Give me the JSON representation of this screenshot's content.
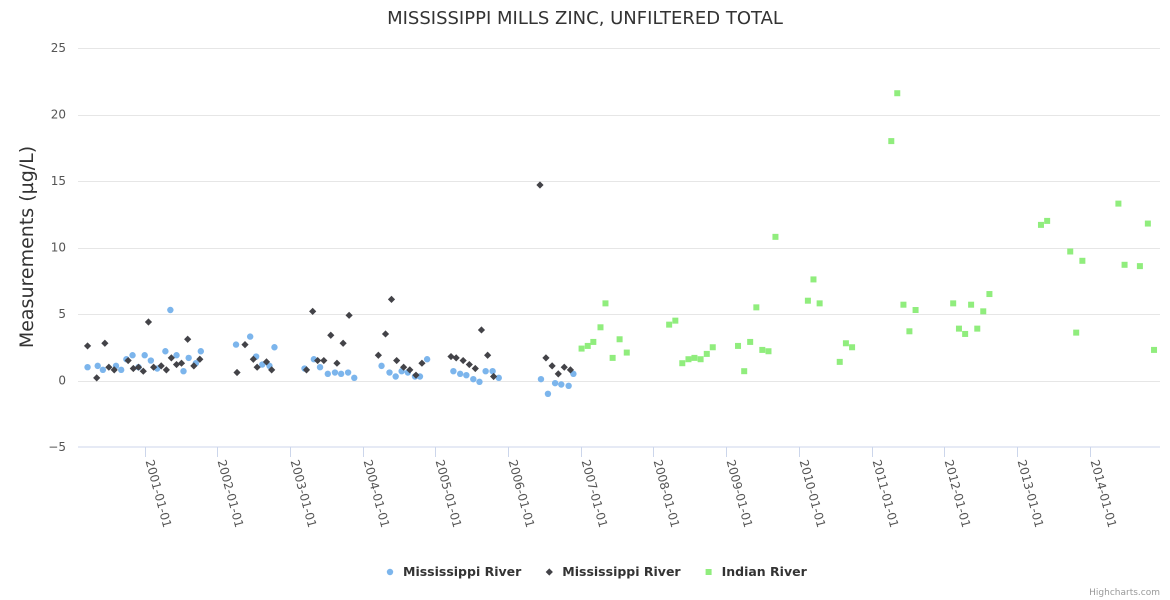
{
  "chart_data": {
    "type": "scatter",
    "title": "MISSISSIPPI MILLS ZINC, UNFILTERED TOTAL",
    "xlabel": "",
    "ylabel": "Measurements (µg/L)",
    "xlim": [
      "2000-02-01",
      "2014-12-20"
    ],
    "ylim": [
      -5,
      25
    ],
    "yticks": [
      -5,
      0,
      5,
      10,
      15,
      20,
      25
    ],
    "xticks": [
      "2001-01-01",
      "2002-01-01",
      "2003-01-01",
      "2004-01-01",
      "2005-01-01",
      "2006-01-01",
      "2007-01-01",
      "2008-01-01",
      "2009-01-01",
      "2010-01-01",
      "2011-01-01",
      "2012-01-01",
      "2013-01-01",
      "2014-01-01"
    ],
    "grid": "horizontal",
    "legend_position": "bottom-center",
    "credit": "Highcharts.com",
    "series": [
      {
        "name": "Mississippi River",
        "marker": "circle-icon",
        "color": "#7cb5ec",
        "points": [
          [
            "2000-03-20",
            1.0
          ],
          [
            "2000-05-10",
            1.1
          ],
          [
            "2000-06-05",
            0.8
          ],
          [
            "2000-08-10",
            1.1
          ],
          [
            "2000-09-05",
            0.8
          ],
          [
            "2000-10-01",
            1.6
          ],
          [
            "2000-11-01",
            1.9
          ],
          [
            "2000-12-01",
            1.0
          ],
          [
            "2001-01-01",
            1.9
          ],
          [
            "2001-02-01",
            1.5
          ],
          [
            "2001-03-05",
            0.9
          ],
          [
            "2001-04-15",
            2.2
          ],
          [
            "2001-05-10",
            5.3
          ],
          [
            "2001-06-10",
            1.9
          ],
          [
            "2001-07-15",
            0.7
          ],
          [
            "2001-08-10",
            1.7
          ],
          [
            "2001-09-15",
            1.3
          ],
          [
            "2001-10-10",
            2.2
          ],
          [
            "2002-04-05",
            2.7
          ],
          [
            "2002-06-15",
            3.3
          ],
          [
            "2002-07-15",
            1.8
          ],
          [
            "2002-08-15",
            1.2
          ],
          [
            "2002-09-20",
            1.1
          ],
          [
            "2002-10-15",
            2.5
          ],
          [
            "2003-03-15",
            0.9
          ],
          [
            "2003-05-01",
            1.6
          ],
          [
            "2003-06-01",
            1.0
          ],
          [
            "2003-07-10",
            0.5
          ],
          [
            "2003-08-15",
            0.6
          ],
          [
            "2003-09-15",
            0.5
          ],
          [
            "2003-10-20",
            0.6
          ],
          [
            "2003-11-20",
            0.2
          ],
          [
            "2004-04-05",
            1.1
          ],
          [
            "2004-05-15",
            0.6
          ],
          [
            "2004-06-15",
            0.3
          ],
          [
            "2004-07-15",
            0.7
          ],
          [
            "2004-08-15",
            0.6
          ],
          [
            "2004-09-20",
            0.3
          ],
          [
            "2004-10-15",
            0.3
          ],
          [
            "2004-11-20",
            1.6
          ],
          [
            "2005-04-01",
            0.7
          ],
          [
            "2005-05-05",
            0.5
          ],
          [
            "2005-06-05",
            0.4
          ],
          [
            "2005-07-10",
            0.1
          ],
          [
            "2005-08-10",
            -0.1
          ],
          [
            "2005-09-10",
            0.7
          ],
          [
            "2005-10-15",
            0.7
          ],
          [
            "2005-11-15",
            0.2
          ],
          [
            "2006-06-15",
            0.1
          ],
          [
            "2006-07-20",
            -1.0
          ],
          [
            "2006-08-25",
            -0.2
          ],
          [
            "2006-09-25",
            -0.3
          ],
          [
            "2006-11-01",
            -0.4
          ],
          [
            "2006-11-25",
            0.5
          ]
        ]
      },
      {
        "name": "Mississippi River",
        "marker": "diamond-icon",
        "color": "#434348",
        "points": [
          [
            "2000-03-20",
            2.6
          ],
          [
            "2000-05-05",
            0.2
          ],
          [
            "2000-06-15",
            2.8
          ],
          [
            "2000-07-05",
            1.0
          ],
          [
            "2000-08-01",
            0.8
          ],
          [
            "2000-10-10",
            1.5
          ],
          [
            "2000-11-05",
            0.9
          ],
          [
            "2000-12-01",
            1.0
          ],
          [
            "2000-12-25",
            0.7
          ],
          [
            "2001-01-20",
            4.4
          ],
          [
            "2001-02-15",
            1.0
          ],
          [
            "2001-03-25",
            1.1
          ],
          [
            "2001-04-20",
            0.8
          ],
          [
            "2001-05-15",
            1.7
          ],
          [
            "2001-06-10",
            1.2
          ],
          [
            "2001-07-05",
            1.3
          ],
          [
            "2001-08-05",
            3.1
          ],
          [
            "2001-09-05",
            1.1
          ],
          [
            "2001-10-05",
            1.6
          ],
          [
            "2002-04-10",
            0.6
          ],
          [
            "2002-05-20",
            2.7
          ],
          [
            "2002-07-01",
            1.6
          ],
          [
            "2002-07-20",
            1.0
          ],
          [
            "2002-09-05",
            1.4
          ],
          [
            "2002-10-01",
            0.8
          ],
          [
            "2003-03-25",
            0.8
          ],
          [
            "2003-04-25",
            5.2
          ],
          [
            "2003-05-20",
            1.5
          ],
          [
            "2003-06-20",
            1.5
          ],
          [
            "2003-07-25",
            3.4
          ],
          [
            "2003-08-25",
            1.3
          ],
          [
            "2003-09-25",
            2.8
          ],
          [
            "2003-10-25",
            4.9
          ],
          [
            "2004-03-20",
            1.9
          ],
          [
            "2004-04-25",
            3.5
          ],
          [
            "2004-05-25",
            6.1
          ],
          [
            "2004-06-20",
            1.5
          ],
          [
            "2004-07-25",
            1.0
          ],
          [
            "2004-08-25",
            0.8
          ],
          [
            "2004-09-25",
            0.4
          ],
          [
            "2004-10-25",
            1.3
          ],
          [
            "2005-03-20",
            1.8
          ],
          [
            "2005-04-15",
            1.7
          ],
          [
            "2005-05-20",
            1.5
          ],
          [
            "2005-06-20",
            1.2
          ],
          [
            "2005-07-20",
            0.9
          ],
          [
            "2005-08-20",
            3.8
          ],
          [
            "2005-09-20",
            1.9
          ],
          [
            "2005-10-20",
            0.3
          ],
          [
            "2006-06-10",
            14.7
          ],
          [
            "2006-07-10",
            1.7
          ],
          [
            "2006-08-10",
            1.1
          ],
          [
            "2006-09-10",
            0.5
          ],
          [
            "2006-10-10",
            1.0
          ],
          [
            "2006-11-10",
            0.8
          ]
        ]
      },
      {
        "name": "Indian River",
        "marker": "square-icon",
        "color": "#90ed7d",
        "points": [
          [
            "2007-01-05",
            2.4
          ],
          [
            "2007-02-05",
            2.6
          ],
          [
            "2007-03-05",
            2.9
          ],
          [
            "2007-04-10",
            4.0
          ],
          [
            "2007-05-05",
            5.8
          ],
          [
            "2007-06-10",
            1.7
          ],
          [
            "2007-07-15",
            3.1
          ],
          [
            "2007-08-20",
            2.1
          ],
          [
            "2008-03-20",
            4.2
          ],
          [
            "2008-04-20",
            4.5
          ],
          [
            "2008-05-25",
            1.3
          ],
          [
            "2008-06-25",
            1.6
          ],
          [
            "2008-07-25",
            1.7
          ],
          [
            "2008-08-25",
            1.6
          ],
          [
            "2008-09-25",
            2.0
          ],
          [
            "2008-10-25",
            2.5
          ],
          [
            "2009-03-01",
            2.6
          ],
          [
            "2009-04-01",
            0.7
          ],
          [
            "2009-05-01",
            2.9
          ],
          [
            "2009-06-01",
            5.5
          ],
          [
            "2009-07-01",
            2.3
          ],
          [
            "2009-08-01",
            2.2
          ],
          [
            "2009-09-05",
            10.8
          ],
          [
            "2010-02-15",
            6.0
          ],
          [
            "2010-03-15",
            7.6
          ],
          [
            "2010-04-15",
            5.8
          ],
          [
            "2010-07-25",
            1.4
          ],
          [
            "2010-08-25",
            2.8
          ],
          [
            "2010-09-25",
            2.5
          ],
          [
            "2011-04-10",
            18.0
          ],
          [
            "2011-05-10",
            21.6
          ],
          [
            "2011-06-10",
            5.7
          ],
          [
            "2011-07-10",
            3.7
          ],
          [
            "2011-08-10",
            5.3
          ],
          [
            "2012-02-15",
            5.8
          ],
          [
            "2012-03-15",
            3.9
          ],
          [
            "2012-04-15",
            3.5
          ],
          [
            "2012-05-15",
            5.7
          ],
          [
            "2012-06-15",
            3.9
          ],
          [
            "2012-07-15",
            5.2
          ],
          [
            "2012-08-15",
            6.5
          ],
          [
            "2013-05-01",
            11.7
          ],
          [
            "2013-06-01",
            12.0
          ],
          [
            "2013-09-25",
            9.7
          ],
          [
            "2013-10-25",
            3.6
          ],
          [
            "2013-11-25",
            9.0
          ],
          [
            "2014-05-25",
            13.3
          ],
          [
            "2014-06-25",
            8.7
          ],
          [
            "2014-09-10",
            8.6
          ],
          [
            "2014-10-20",
            11.8
          ],
          [
            "2014-11-20",
            2.3
          ]
        ]
      }
    ]
  }
}
